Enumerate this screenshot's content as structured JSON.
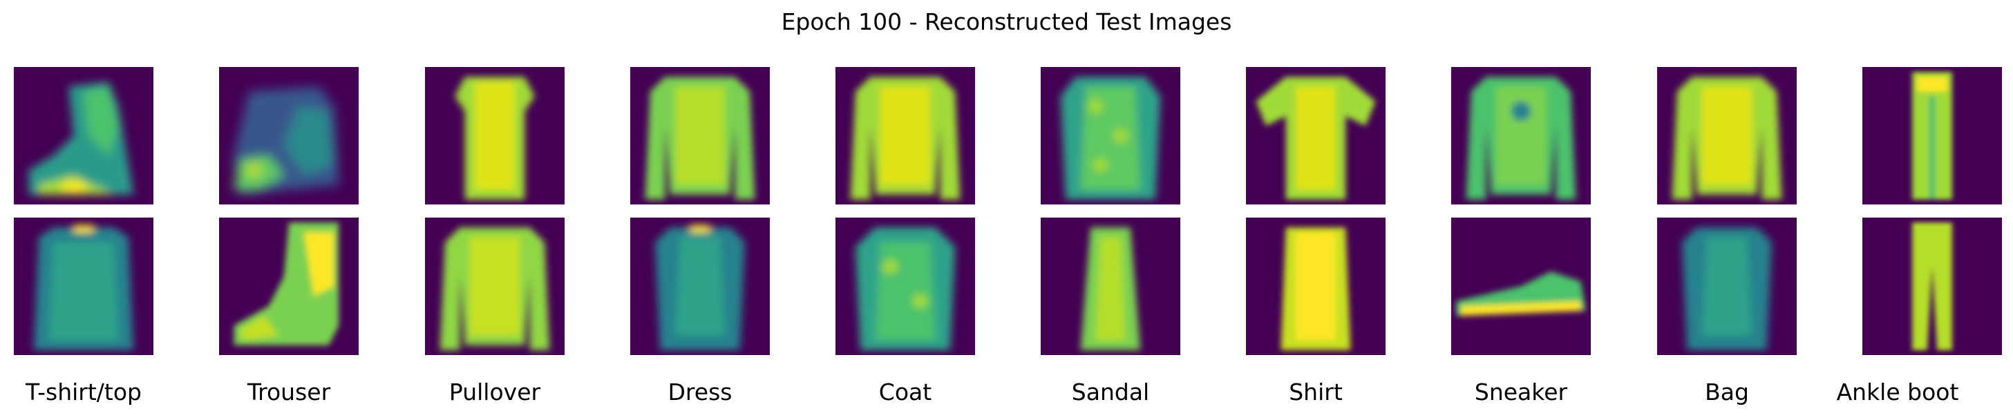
{
  "figure": {
    "title": "Epoch 100 - Reconstructed Test Images"
  },
  "colormap": {
    "name": "viridis",
    "low": "#440154",
    "mid_low": "#31688e",
    "mid": "#26828e",
    "mid_high": "#35b779",
    "high": "#fde725"
  },
  "columns": [
    {
      "label": "T-shirt/top",
      "top": "reconstructed ankle boot (blurred)",
      "bottom": "long-sleeve top"
    },
    {
      "label": "Trouser",
      "top": "reconstructed boot (faint)",
      "bottom": "ankle boot"
    },
    {
      "label": "Pullover",
      "top": "short-sleeve dress",
      "bottom": "long-sleeve pullover"
    },
    {
      "label": "Dress",
      "top": "long-sleeve pullover",
      "bottom": "t-shirt (faint)"
    },
    {
      "label": "Coat",
      "top": "long-sleeve coat",
      "bottom": "textured shirt"
    },
    {
      "label": "Sandal",
      "top": "textured top",
      "bottom": "dress"
    },
    {
      "label": "Shirt",
      "top": "t-shirt",
      "bottom": "dress"
    },
    {
      "label": "Sneaker",
      "top": "long-sleeve shirt",
      "bottom": "sneaker"
    },
    {
      "label": "Bag",
      "top": "long-sleeve pullover",
      "bottom": "t-shirt (faint)"
    },
    {
      "label": "Ankle boot",
      "top": "trousers",
      "bottom": "trousers (separated legs)"
    }
  ]
}
